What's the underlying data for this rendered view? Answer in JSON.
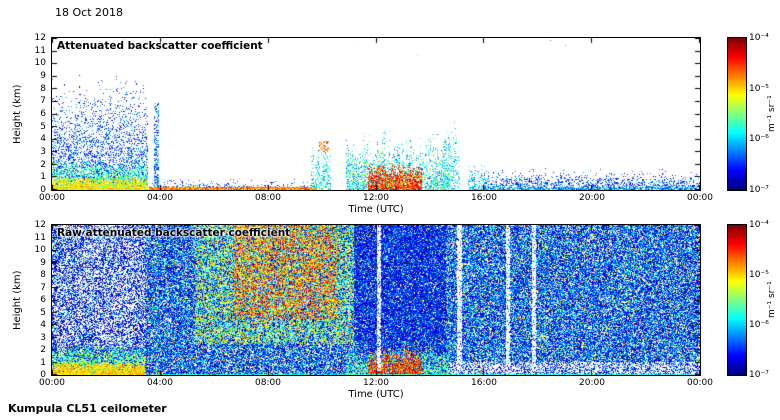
{
  "date_label": "18 Oct 2018",
  "footer": "Kumpula CL51 ceilometer",
  "colors": {
    "background": "#ffffff",
    "axes_border": "#000000",
    "jet_stops": [
      "#000080",
      "#0000ff",
      "#00ffff",
      "#80ff80",
      "#ffff00",
      "#ff0000",
      "#800000"
    ]
  },
  "chart_data": [
    {
      "type": "heatmap",
      "title": "Attenuated backscatter coefficient",
      "xlabel": "Time (UTC)",
      "ylabel": "Height (km)",
      "x_ticks": [
        "00:00",
        "04:00",
        "08:00",
        "12:00",
        "16:00",
        "20:00",
        "00:00"
      ],
      "x_range_hours": [
        0,
        24
      ],
      "y_ticks": [
        0,
        1,
        2,
        3,
        4,
        5,
        6,
        7,
        8,
        9,
        10,
        11,
        12
      ],
      "ylim_km": [
        0,
        12
      ],
      "grid": false,
      "colorbar": {
        "label": "m⁻¹ sr⁻¹",
        "ticks": [
          "10⁻⁴",
          "10⁻⁵",
          "10⁻⁶",
          "10⁻⁷"
        ],
        "scale": "log10",
        "value_range_log10": [
          -7,
          -4
        ],
        "colormap": "jet",
        "position": "right"
      },
      "features": [
        {
          "desc": "nocturnal plume speckle to 9.5 km",
          "t": [
            0,
            3.55
          ],
          "h": [
            0,
            9.6
          ],
          "log10_range": [
            -6.7,
            -6.1
          ],
          "density": 0.5,
          "fade": 1.1,
          "jitter": 0.2
        },
        {
          "desc": "nocturnal lower layer",
          "t": [
            0,
            3.55
          ],
          "h": [
            0,
            2.3
          ],
          "log10_range": [
            -6.0,
            -5.3
          ],
          "density": 0.85,
          "fade": 0.7
        },
        {
          "desc": "nocturnal surface layer",
          "t": [
            0,
            3.55
          ],
          "h": [
            0,
            1.0
          ],
          "log10_range": [
            -5.4,
            -4.8
          ],
          "density": 1,
          "fade": 0.4
        },
        {
          "desc": "isolated column ~03:50",
          "t": [
            3.78,
            3.95
          ],
          "h": [
            0,
            7.2
          ],
          "log10_range": [
            -6.6,
            -6.0
          ],
          "density": 0.55,
          "fade": 0.4
        },
        {
          "desc": "morning shallow speckle",
          "t": [
            3.6,
            9.8
          ],
          "h": [
            0,
            0.9
          ],
          "log10_range": [
            -6.6,
            -6.1
          ],
          "density": 0.3,
          "fade": 1.2
        },
        {
          "desc": "morning strong surface line",
          "t": [
            3.6,
            9.8
          ],
          "h": [
            0,
            0.3
          ],
          "log10_range": [
            -5.1,
            -4.4
          ],
          "density": 0.92,
          "jitter": 0.3
        },
        {
          "desc": "plume ~10:00 to 4 km",
          "t": [
            9.6,
            10.35
          ],
          "h": [
            0,
            4.2
          ],
          "log10_range": [
            -6.3,
            -5.4
          ],
          "density": 0.5,
          "fade": 0.6,
          "jitter": 0.5
        },
        {
          "desc": "strong cell aloft ~10:00",
          "t": [
            9.9,
            10.25
          ],
          "h": [
            3.0,
            3.9
          ],
          "log10_range": [
            -4.9,
            -4.4
          ],
          "density": 0.3
        },
        {
          "desc": "midday event envelope 11-14:40",
          "t": [
            10.9,
            14.7
          ],
          "h": [
            0,
            5.0
          ],
          "log10_range": [
            -6.4,
            -5.3
          ],
          "density": 0.6,
          "fade": 0.7,
          "jitter": 0.5
        },
        {
          "desc": "midday strong cores 12-13:40",
          "t": [
            11.7,
            13.7
          ],
          "h": [
            0,
            2.4
          ],
          "log10_range": [
            -5.0,
            -4.1
          ],
          "density": 0.9,
          "fade": 0.4,
          "jitter": 0.4
        },
        {
          "desc": "tall narrow columns 14:30-15:00",
          "t": [
            14.4,
            15.1
          ],
          "h": [
            0,
            6.2
          ],
          "log10_range": [
            -6.3,
            -5.5
          ],
          "density": 0.42,
          "fade": 0.5,
          "jitter": 0.7
        },
        {
          "desc": "small cells 15:30-16:00",
          "t": [
            15.4,
            16.1
          ],
          "h": [
            0,
            2.2
          ],
          "log10_range": [
            -6.4,
            -5.7
          ],
          "density": 0.5,
          "fade": 0.6,
          "jitter": 0.5
        },
        {
          "desc": "evening residual layer to ~2 km",
          "t": [
            16,
            24
          ],
          "h": [
            0,
            1.9
          ],
          "log10_range": [
            -6.7,
            -6.1
          ],
          "density": 0.5,
          "fade": 1.2,
          "jitter": 0.3
        },
        {
          "desc": "evening surface",
          "t": [
            16,
            24
          ],
          "h": [
            0,
            0.4
          ],
          "log10_range": [
            -6.4,
            -5.9
          ],
          "density": 0.55,
          "fade": 0.5
        },
        {
          "desc": "sporadic specks near top",
          "t": [
            0,
            24
          ],
          "h": [
            10.6,
            11.9
          ],
          "log10_range": [
            -5.4,
            -4.5
          ],
          "density": 0.001
        }
      ]
    },
    {
      "type": "heatmap",
      "title": "Raw attenuated backscatter coefficient",
      "xlabel": "Time (UTC)",
      "ylabel": "Height (km)",
      "x_ticks": [
        "00:00",
        "04:00",
        "08:00",
        "12:00",
        "16:00",
        "20:00",
        "00:00"
      ],
      "x_range_hours": [
        0,
        24
      ],
      "y_ticks": [
        0,
        1,
        2,
        3,
        4,
        5,
        6,
        7,
        8,
        9,
        10,
        11,
        12
      ],
      "ylim_km": [
        0,
        12
      ],
      "grid": false,
      "colorbar": {
        "label": "m⁻¹ sr⁻¹",
        "ticks": [
          "10⁻⁴",
          "10⁻⁵",
          "10⁻⁶",
          "10⁻⁷"
        ],
        "scale": "log10",
        "value_range_log10": [
          -7,
          -4
        ],
        "colormap": "jet",
        "position": "right"
      },
      "features": [
        {
          "desc": "background noise blue",
          "t": [
            0,
            24
          ],
          "h": [
            0,
            12
          ],
          "log10_range": [
            -7.0,
            -5.9
          ],
          "density": 0.8
        },
        {
          "desc": "background green speckle",
          "t": [
            0,
            24
          ],
          "h": [
            0,
            12
          ],
          "log10_range": [
            -5.7,
            -4.9
          ],
          "density": 0.09
        },
        {
          "desc": "background warm speckle",
          "t": [
            0,
            24
          ],
          "h": [
            0,
            12
          ],
          "log10_range": [
            -4.9,
            -4.4
          ],
          "density": 0.012
        },
        {
          "desc": "quiet sector 00-03:30 aloft",
          "t": [
            0,
            3.45
          ],
          "h": [
            2.2,
            12
          ],
          "clear": true,
          "density": 0.55
        },
        {
          "desc": "quiet sector residual blue",
          "t": [
            0,
            3.45
          ],
          "h": [
            2.2,
            12
          ],
          "log10_range": [
            -7.0,
            -6.4
          ],
          "density": 0.25
        },
        {
          "desc": "nocturnal lower layer",
          "t": [
            0,
            3.45
          ],
          "h": [
            0,
            2.3
          ],
          "log10_range": [
            -5.9,
            -5.1
          ],
          "density": 0.9,
          "fade": 0.6
        },
        {
          "desc": "nocturnal surface",
          "t": [
            0,
            3.45
          ],
          "h": [
            0,
            1.0
          ],
          "log10_range": [
            -5.3,
            -4.7
          ],
          "density": 1,
          "fade": 0.3
        },
        {
          "desc": "daytime solar noise aloft 05:30-11",
          "t": [
            5.3,
            11.2
          ],
          "h": [
            2.5,
            12
          ],
          "log10_range": [
            -5.9,
            -4.8
          ],
          "density": 0.42
        },
        {
          "desc": "midmorning strong noise 5-12 km",
          "t": [
            6.7,
            10.6
          ],
          "h": [
            4.5,
            12
          ],
          "log10_range": [
            -5.1,
            -4.3
          ],
          "density": 0.38
        },
        {
          "desc": "midday attenuated blue sector",
          "t": [
            11.2,
            14.6
          ],
          "h": [
            1.8,
            12
          ],
          "log10_range": [
            -7.0,
            -6.2
          ],
          "density": 0.6
        },
        {
          "desc": "midday event envelope",
          "t": [
            10.9,
            14.7
          ],
          "h": [
            0,
            3.2
          ],
          "log10_range": [
            -6.2,
            -5.2
          ],
          "density": 0.6,
          "fade": 0.7,
          "jitter": 0.5
        },
        {
          "desc": "midday strong cores",
          "t": [
            11.7,
            13.7
          ],
          "h": [
            0,
            2.4
          ],
          "log10_range": [
            -5.0,
            -4.1
          ],
          "density": 0.9,
          "fade": 0.4,
          "jitter": 0.4
        },
        {
          "desc": "clear stripe ~12:05",
          "t": [
            12.02,
            12.18
          ],
          "h": [
            0.3,
            12
          ],
          "clear": true,
          "density": 0.8
        },
        {
          "desc": "clear stripe ~15:05",
          "t": [
            15.0,
            15.18
          ],
          "h": [
            0.3,
            12
          ],
          "clear": true,
          "density": 0.8
        },
        {
          "desc": "clear stripe ~16:50",
          "t": [
            16.82,
            16.98
          ],
          "h": [
            0.3,
            12
          ],
          "clear": true,
          "density": 0.8
        },
        {
          "desc": "clear stripe ~17:50",
          "t": [
            17.78,
            17.94
          ],
          "h": [
            0.3,
            12
          ],
          "clear": true,
          "density": 0.8
        },
        {
          "desc": "evening shallow clear band",
          "t": [
            14.7,
            24
          ],
          "h": [
            0.1,
            1.0
          ],
          "clear": true,
          "density": 0.65
        },
        {
          "desc": "evening sparse low speckle",
          "t": [
            14.7,
            24
          ],
          "h": [
            0.1,
            1.0
          ],
          "log10_range": [
            -6.8,
            -6.3
          ],
          "density": 0.2
        },
        {
          "desc": "surface return line",
          "t": [
            3.45,
            24
          ],
          "h": [
            0,
            0.12
          ],
          "log10_range": [
            -6.1,
            -5.5
          ],
          "density": 0.85
        }
      ]
    }
  ]
}
